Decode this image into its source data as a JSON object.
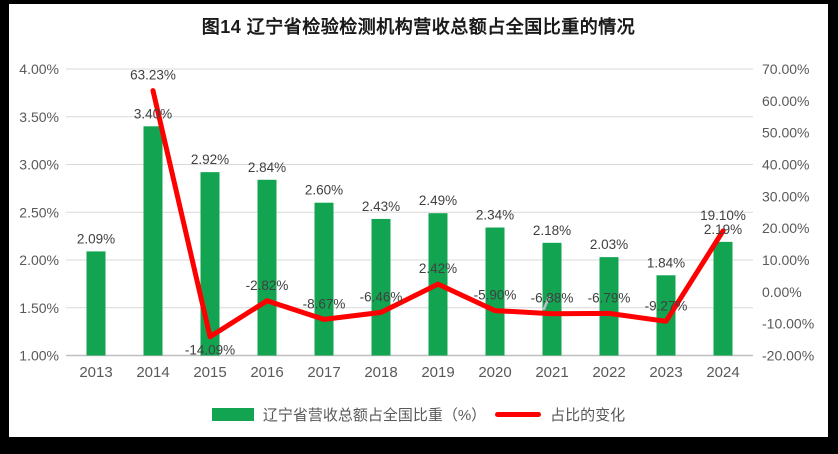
{
  "title": "图14 辽宁省检验检测机构营收总额占全国比重的情况",
  "legend": {
    "bar_label": "辽宁省营收总额占全国比重（%）",
    "line_label": "占比的变化"
  },
  "colors": {
    "bar": "#13A452",
    "line": "#FF0000",
    "grid": "#D9D9D9",
    "axis": "#BFBFBF",
    "tick_text": "#595959",
    "data_label": "#404040",
    "background": "#FFFFFF",
    "frame": "#000000"
  },
  "chart_data": {
    "type": "bar",
    "title": "图14 辽宁省检验检测机构营收总额占全国比重的情况",
    "categories": [
      "2013",
      "2014",
      "2015",
      "2016",
      "2017",
      "2018",
      "2019",
      "2020",
      "2021",
      "2022",
      "2023",
      "2024"
    ],
    "series": [
      {
        "name": "辽宁省营收总额占全国比重（%）",
        "type": "bar",
        "axis": "left",
        "values": [
          2.09,
          3.4,
          2.92,
          2.84,
          2.6,
          2.43,
          2.49,
          2.34,
          2.18,
          2.03,
          1.84,
          2.19
        ],
        "labels": [
          "2.09%",
          "3.40%",
          "2.92%",
          "2.84%",
          "2.60%",
          "2.43%",
          "2.49%",
          "2.34%",
          "2.18%",
          "2.03%",
          "1.84%",
          "2.19%"
        ]
      },
      {
        "name": "占比的变化",
        "type": "line",
        "axis": "right",
        "values": [
          null,
          63.23,
          -14.09,
          -2.82,
          -8.67,
          -6.46,
          2.42,
          -5.9,
          -6.88,
          -6.79,
          -9.27,
          19.1
        ],
        "labels": [
          null,
          "63.23%",
          "-14.09%",
          "-2.82%",
          "-8.67%",
          "-6.46%",
          "2.42%",
          "-5.90%",
          "-6.88%",
          "-6.79%",
          "-9.27%",
          "19.10%"
        ],
        "label_side": [
          null,
          "above",
          "below",
          "above",
          "above",
          "above",
          "above",
          "above",
          "above",
          "above",
          "above",
          "above"
        ]
      }
    ],
    "left_axis": {
      "min": 1.0,
      "max": 4.0,
      "tick_values": [
        4.0,
        3.5,
        3.0,
        2.5,
        2.0,
        1.5,
        1.0
      ],
      "tick_labels": [
        "4.00%",
        "3.50%",
        "3.00%",
        "2.50%",
        "2.00%",
        "1.50%",
        "1.00%"
      ]
    },
    "right_axis": {
      "min": -20,
      "max": 70,
      "tick_values": [
        70,
        60,
        50,
        40,
        30,
        20,
        10,
        0,
        -10,
        -20
      ],
      "tick_labels": [
        "70.00%",
        "60.00%",
        "50.00%",
        "40.00%",
        "30.00%",
        "20.00%",
        "10.00%",
        "0.00%",
        "-10.00%",
        "-20.00%"
      ]
    },
    "grid": true,
    "legend_position": "bottom"
  }
}
